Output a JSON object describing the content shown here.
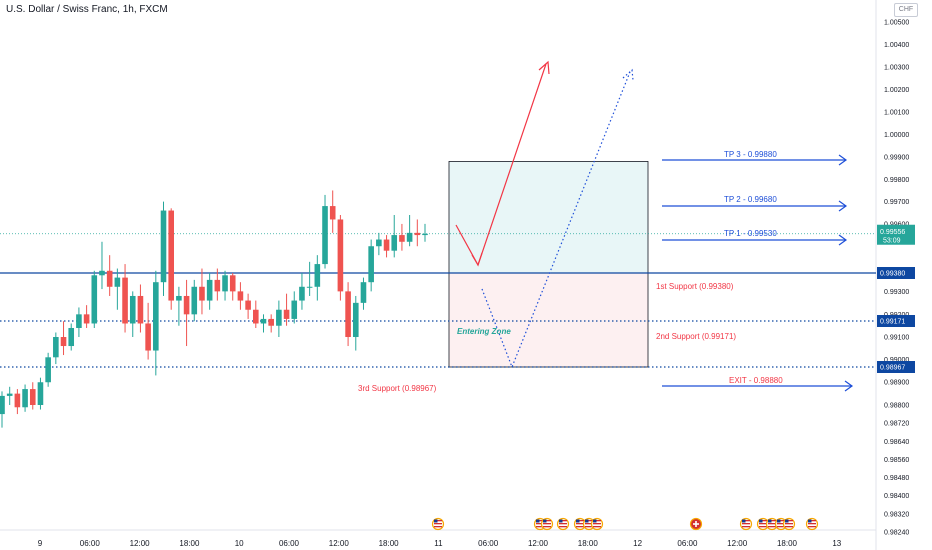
{
  "header": {
    "title": "U.S. Dollar / Swiss Franc, 1h, FXCM",
    "currency": "CHF"
  },
  "colors": {
    "up": "#26a69a",
    "down": "#ef5350",
    "line_blue": "#0d47a1",
    "arrow_blue": "#1e4fd8",
    "annotation_red": "#f23645",
    "price_badge": "#0d47a1",
    "current_badge": "#26a69a",
    "zone_green": "#e8f6f7",
    "zone_red": "#fdf0f1"
  },
  "chart_data": {
    "type": "candlestick",
    "price_axis": {
      "ticks": [
        "1.00500",
        "1.00400",
        "1.00300",
        "1.00200",
        "1.00100",
        "1.00000",
        "0.99900",
        "0.99800",
        "0.99700",
        "0.99600",
        "0.99300",
        "0.99200",
        "0.99100",
        "0.99000",
        "0.98900",
        "0.98800",
        "0.98720",
        "0.98640",
        "0.98560",
        "0.98480",
        "0.98400",
        "0.98320",
        "0.98240"
      ]
    },
    "time_axis": {
      "ticks": [
        "9",
        "06:00",
        "12:00",
        "18:00",
        "10",
        "06:00",
        "12:00",
        "18:00",
        "11",
        "06:00",
        "12:00",
        "18:00",
        "12",
        "06:00",
        "12:00",
        "18:00",
        "13"
      ]
    },
    "current_price": "0.99556",
    "countdown": "53:09",
    "levels": [
      {
        "price": 0.9938,
        "label": "0.99380",
        "style": "solid"
      },
      {
        "price": 0.99171,
        "label": "0.99171",
        "style": "dotted"
      },
      {
        "price": 0.98967,
        "label": "0.98967",
        "style": "dotted"
      }
    ],
    "candles": [
      [
        0.9876,
        0.9886,
        0.987,
        0.9884
      ],
      [
        0.9884,
        0.9888,
        0.988,
        0.9885
      ],
      [
        0.9885,
        0.9887,
        0.9876,
        0.9879
      ],
      [
        0.9879,
        0.9889,
        0.9877,
        0.9887
      ],
      [
        0.9887,
        0.989,
        0.9878,
        0.988
      ],
      [
        0.988,
        0.9892,
        0.9878,
        0.989
      ],
      [
        0.989,
        0.9903,
        0.9888,
        0.9901
      ],
      [
        0.9901,
        0.9912,
        0.9898,
        0.991
      ],
      [
        0.991,
        0.9917,
        0.9902,
        0.9906
      ],
      [
        0.9906,
        0.9916,
        0.9904,
        0.9914
      ],
      [
        0.9914,
        0.9923,
        0.991,
        0.992
      ],
      [
        0.992,
        0.9924,
        0.9914,
        0.9916
      ],
      [
        0.9916,
        0.9939,
        0.9914,
        0.9937
      ],
      [
        0.9937,
        0.9952,
        0.9931,
        0.9939
      ],
      [
        0.9939,
        0.9946,
        0.9928,
        0.9932
      ],
      [
        0.9932,
        0.994,
        0.9922,
        0.9936
      ],
      [
        0.9936,
        0.9942,
        0.9912,
        0.9916
      ],
      [
        0.9916,
        0.993,
        0.991,
        0.9928
      ],
      [
        0.9928,
        0.9933,
        0.9912,
        0.9916
      ],
      [
        0.9916,
        0.9925,
        0.99,
        0.9904
      ],
      [
        0.9904,
        0.9939,
        0.9893,
        0.9934
      ],
      [
        0.9934,
        0.997,
        0.9928,
        0.9966
      ],
      [
        0.9966,
        0.9967,
        0.9922,
        0.9926
      ],
      [
        0.9926,
        0.9932,
        0.9915,
        0.9928
      ],
      [
        0.9928,
        0.9935,
        0.9906,
        0.992
      ],
      [
        0.992,
        0.9935,
        0.9917,
        0.9932
      ],
      [
        0.9932,
        0.994,
        0.992,
        0.9926
      ],
      [
        0.9926,
        0.9938,
        0.9922,
        0.9935
      ],
      [
        0.9935,
        0.994,
        0.9926,
        0.993
      ],
      [
        0.993,
        0.9939,
        0.9926,
        0.9937
      ],
      [
        0.9937,
        0.9938,
        0.9926,
        0.993
      ],
      [
        0.993,
        0.9934,
        0.9922,
        0.9926
      ],
      [
        0.9926,
        0.9929,
        0.9918,
        0.9922
      ],
      [
        0.9922,
        0.9926,
        0.9914,
        0.9916
      ],
      [
        0.9916,
        0.992,
        0.9912,
        0.9918
      ],
      [
        0.9918,
        0.992,
        0.9912,
        0.9915
      ],
      [
        0.9915,
        0.9926,
        0.991,
        0.9922
      ],
      [
        0.9922,
        0.9929,
        0.9915,
        0.9918
      ],
      [
        0.9918,
        0.993,
        0.9916,
        0.9926
      ],
      [
        0.9926,
        0.9938,
        0.9922,
        0.9932
      ],
      [
        0.9932,
        0.9943,
        0.9928,
        0.9932
      ],
      [
        0.9932,
        0.9946,
        0.9926,
        0.9942
      ],
      [
        0.9942,
        0.9973,
        0.994,
        0.9968
      ],
      [
        0.9968,
        0.9975,
        0.9956,
        0.9962
      ],
      [
        0.9962,
        0.9964,
        0.9926,
        0.993
      ],
      [
        0.993,
        0.9934,
        0.9906,
        0.991
      ],
      [
        0.991,
        0.9928,
        0.9904,
        0.9925
      ],
      [
        0.9925,
        0.9936,
        0.9922,
        0.9934
      ],
      [
        0.9934,
        0.9953,
        0.993,
        0.995
      ],
      [
        0.995,
        0.9956,
        0.9946,
        0.9953
      ],
      [
        0.9953,
        0.9955,
        0.9945,
        0.9948
      ],
      [
        0.9948,
        0.9964,
        0.9945,
        0.9955
      ],
      [
        0.9955,
        0.996,
        0.9948,
        0.9952
      ],
      [
        0.9952,
        0.9964,
        0.995,
        0.9956
      ],
      [
        0.9956,
        0.9962,
        0.995,
        0.9955
      ],
      [
        0.9955,
        0.996,
        0.9952,
        0.99556
      ]
    ],
    "zones": [
      {
        "name": "tp-zone",
        "from": 0.9938,
        "to": 0.9988
      },
      {
        "name": "entry-zone",
        "from": 0.98967,
        "to": 0.9938
      }
    ]
  },
  "annotations": {
    "tp3": "TP 3 - 0.99880",
    "tp2": "TP 2 - 0.99680",
    "tp1": "TP 1 - 0.99530",
    "support1": "1st Support (0.99380)",
    "support2": "2nd Support (0.99171)",
    "support3": "3rd Support (0.98967)",
    "entering_zone": "Entering Zone",
    "exit": "EXIT - 0.98880"
  },
  "events": {
    "us_flag": "us-flag-icon",
    "ch_flag": "ch-flag-icon"
  }
}
